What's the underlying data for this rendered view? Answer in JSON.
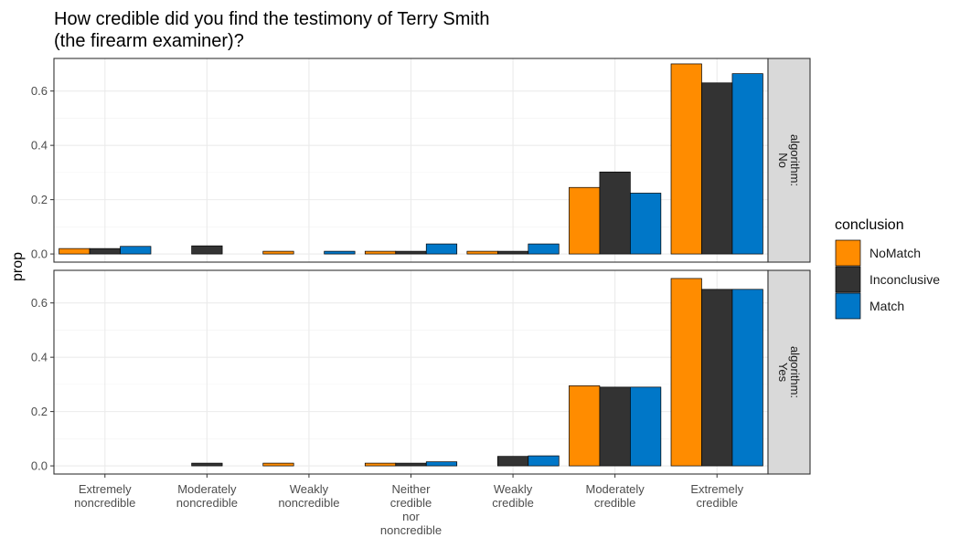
{
  "chart_data": {
    "type": "bar",
    "title_lines": [
      "How credible did you find the testimony of Terry Smith",
      "(the firearm examiner)?"
    ],
    "ylabel": "prop",
    "xlabel": "",
    "ylim": [
      -0.03,
      0.72
    ],
    "y_ticks": [
      "0.0",
      "0.2",
      "0.4",
      "0.6"
    ],
    "grid": true,
    "categories": [
      [
        "Extremely",
        "noncredible"
      ],
      [
        "Moderately",
        "noncredible"
      ],
      [
        "Weakly",
        "noncredible"
      ],
      [
        "Neither",
        "credible",
        "nor",
        "noncredible"
      ],
      [
        "Weakly",
        "credible"
      ],
      [
        "Moderately",
        "credible"
      ],
      [
        "Extremely",
        "credible"
      ]
    ],
    "legend": {
      "title": "conclusion",
      "position": "right",
      "items": [
        {
          "name": "NoMatch",
          "color": "#ff8c00"
        },
        {
          "name": "Inconclusive",
          "color": "#333333"
        },
        {
          "name": "Match",
          "color": "#0077c8"
        }
      ]
    },
    "facets": [
      {
        "strip_lines": [
          "algorithm:",
          "No"
        ],
        "series": [
          {
            "name": "NoMatch",
            "values": [
              0.02,
              null,
              0.01,
              0.01,
              0.01,
              0.245,
              0.7
            ]
          },
          {
            "name": "Inconclusive",
            "values": [
              0.02,
              0.03,
              null,
              0.01,
              0.01,
              0.302,
              0.63
            ]
          },
          {
            "name": "Match",
            "values": [
              0.028,
              null,
              0.01,
              0.037,
              0.037,
              0.224,
              0.664
            ]
          }
        ]
      },
      {
        "strip_lines": [
          "algorithm:",
          "Yes"
        ],
        "series": [
          {
            "name": "NoMatch",
            "values": [
              null,
              null,
              0.01,
              0.01,
              null,
              0.295,
              0.69
            ]
          },
          {
            "name": "Inconclusive",
            "values": [
              null,
              0.01,
              null,
              0.01,
              0.035,
              0.29,
              0.65
            ]
          },
          {
            "name": "Match",
            "values": [
              null,
              null,
              null,
              0.015,
              0.037,
              0.29,
              0.65
            ]
          }
        ]
      }
    ]
  }
}
